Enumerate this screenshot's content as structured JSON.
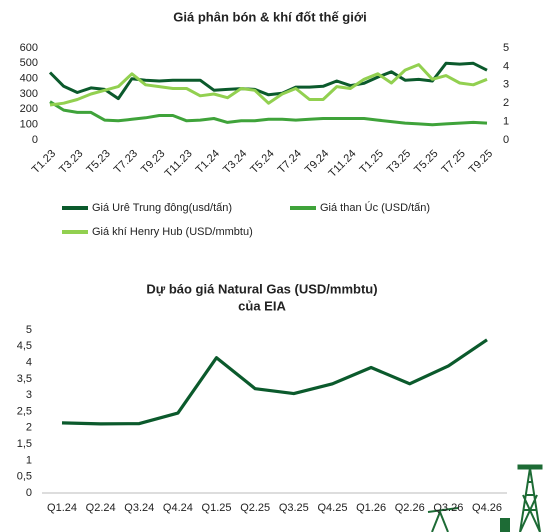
{
  "chart_data": [
    {
      "type": "line",
      "title": "Giá phân bón & khí đốt thế giới",
      "categories": [
        "T1.23",
        null,
        "T3.23",
        null,
        "T5.23",
        null,
        "T7.23",
        null,
        "T9.23",
        null,
        "T11.23",
        null,
        "T1.24",
        null,
        "T3.24",
        null,
        "T5.24",
        null,
        "T7.24",
        null,
        "T9.24",
        null,
        "T11.24",
        null,
        "T1.25",
        null,
        "T3.25",
        null,
        "T5.25",
        null,
        "T7.25",
        null,
        "T9.25"
      ],
      "series": [
        {
          "name": "Giá Urê Trung đông(usd/tấn)",
          "color": "#0b5a2c",
          "values": [
            440,
            350,
            310,
            340,
            330,
            270,
            400,
            390,
            385,
            390,
            390,
            390,
            325,
            330,
            335,
            330,
            295,
            305,
            345,
            345,
            350,
            385,
            355,
            370,
            410,
            445,
            390,
            395,
            385,
            500,
            495,
            500,
            455
          ]
        },
        {
          "name": "Giá than Úc (USD/tấn)",
          "color": "#3fa33a",
          "values": [
            250,
            195,
            180,
            180,
            130,
            125,
            135,
            145,
            160,
            160,
            125,
            130,
            140,
            115,
            125,
            125,
            135,
            135,
            130,
            135,
            140,
            140,
            140,
            140,
            130,
            120,
            110,
            105,
            100,
            105,
            110,
            115,
            110
          ]
        },
        {
          "name": "Giá khí Henry Hub (USD/mmbtu)",
          "color": "#92d050",
          "axis": "y2",
          "values": [
            1.9,
            2.0,
            2.2,
            2.5,
            2.7,
            2.9,
            3.6,
            3.0,
            2.9,
            2.8,
            2.8,
            2.4,
            2.5,
            2.3,
            2.8,
            2.7,
            2.0,
            2.5,
            2.8,
            2.2,
            2.2,
            2.9,
            2.8,
            3.3,
            3.6,
            3.1,
            3.8,
            4.1,
            3.3,
            3.5,
            3.1,
            3.0,
            3.3
          ]
        }
      ],
      "ylim": [
        0,
        600
      ],
      "yticks": [
        0,
        100,
        200,
        300,
        400,
        500,
        600
      ],
      "y2lim": [
        0,
        5
      ],
      "y2ticks": [
        0,
        1,
        2,
        3,
        4,
        5
      ],
      "legend": "bottom"
    },
    {
      "type": "line",
      "title": "Dự báo giá Natural Gas (USD/mmbtu)",
      "subtitle": "của EIA",
      "categories": [
        "Q1.24",
        "Q2.24",
        "Q3.24",
        "Q4.24",
        "Q1.25",
        "Q2.25",
        "Q3.25",
        "Q4.25",
        "Q1.26",
        "Q2.26",
        "Q3.26",
        "Q4.26"
      ],
      "series": [
        {
          "name": "Natural Gas",
          "color": "#0b5a2c",
          "values": [
            2.15,
            2.12,
            2.13,
            2.45,
            4.15,
            3.2,
            3.05,
            3.35,
            3.85,
            3.35,
            3.9,
            4.7
          ]
        }
      ],
      "ylim": [
        0,
        5
      ],
      "yticks": [
        0,
        {
          "value": 0.5,
          "label": "0,5"
        },
        1,
        {
          "value": 1.5,
          "label": "1,5"
        },
        2,
        {
          "value": 2.5,
          "label": "2,5"
        },
        3,
        {
          "value": 3.5,
          "label": "3,5"
        },
        4,
        {
          "value": 4.5,
          "label": "4,5"
        },
        5
      ]
    }
  ]
}
